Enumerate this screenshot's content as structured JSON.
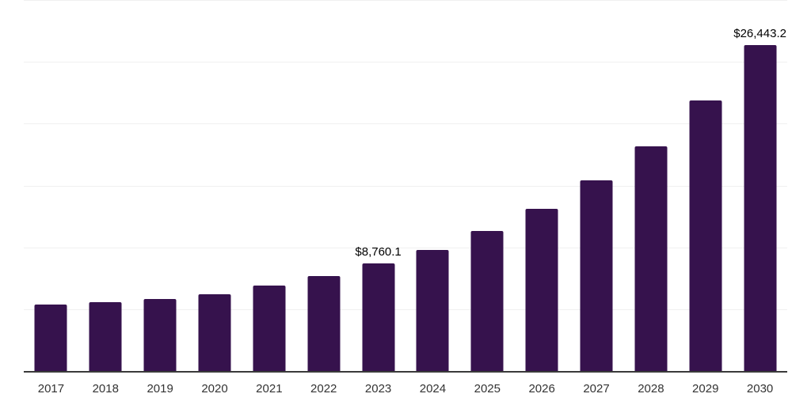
{
  "chart_data": {
    "type": "bar",
    "title": "",
    "xlabel": "",
    "ylabel": "",
    "categories": [
      "2017",
      "2018",
      "2019",
      "2020",
      "2021",
      "2022",
      "2023",
      "2024",
      "2025",
      "2026",
      "2027",
      "2028",
      "2029",
      "2030"
    ],
    "values": [
      5440,
      5650,
      5870,
      6290,
      6980,
      7760,
      8760.1,
      9880,
      11370,
      13180,
      15470,
      18260,
      21930,
      26443.2
    ],
    "data_labels": [
      "",
      "",
      "",
      "",
      "",
      "",
      "$8,760.1",
      "",
      "",
      "",
      "",
      "",
      "",
      "$26,443.2"
    ],
    "ylim": [
      0,
      30000
    ],
    "gridline_values": [
      5000,
      10000,
      15000,
      20000,
      25000,
      30000
    ],
    "grid": "horizontal",
    "y_axis_tick_labels_visible": false,
    "legend": "none"
  },
  "colors": {
    "bar": "#36124D",
    "gridline": "#f0f0f0",
    "axis_line": "#3a3a3a",
    "data_label": "#000000",
    "category_label": "#333333",
    "background": "#ffffff"
  }
}
